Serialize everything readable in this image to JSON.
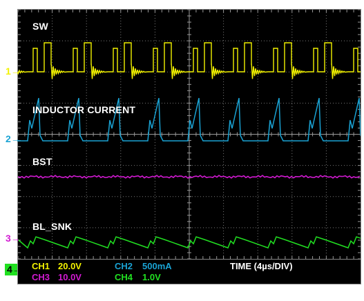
{
  "channels": [
    {
      "id": "1",
      "name": "SW",
      "scale_label": "CH1",
      "scale": "20.0V",
      "color": "#f2f200"
    },
    {
      "id": "2",
      "name": "INDUCTOR CURRENT",
      "scale_label": "CH2",
      "scale": "500mA",
      "color": "#1aa3d4"
    },
    {
      "id": "3",
      "name": "BST",
      "scale_label": "CH3",
      "scale": "10.0V",
      "color": "#d21ad2"
    },
    {
      "id": "4",
      "name": "BL_SNK",
      "scale_label": "CH4",
      "scale": "1.0V",
      "color": "#21e021"
    }
  ],
  "markers": {
    "m1": "1",
    "m2": "2",
    "m3": "3",
    "m4": "4"
  },
  "time_label": "TIME (4µs/DIV)",
  "colors": {
    "background": "#000000",
    "grid": "#7a7a7a",
    "label": "#ffffff"
  }
}
